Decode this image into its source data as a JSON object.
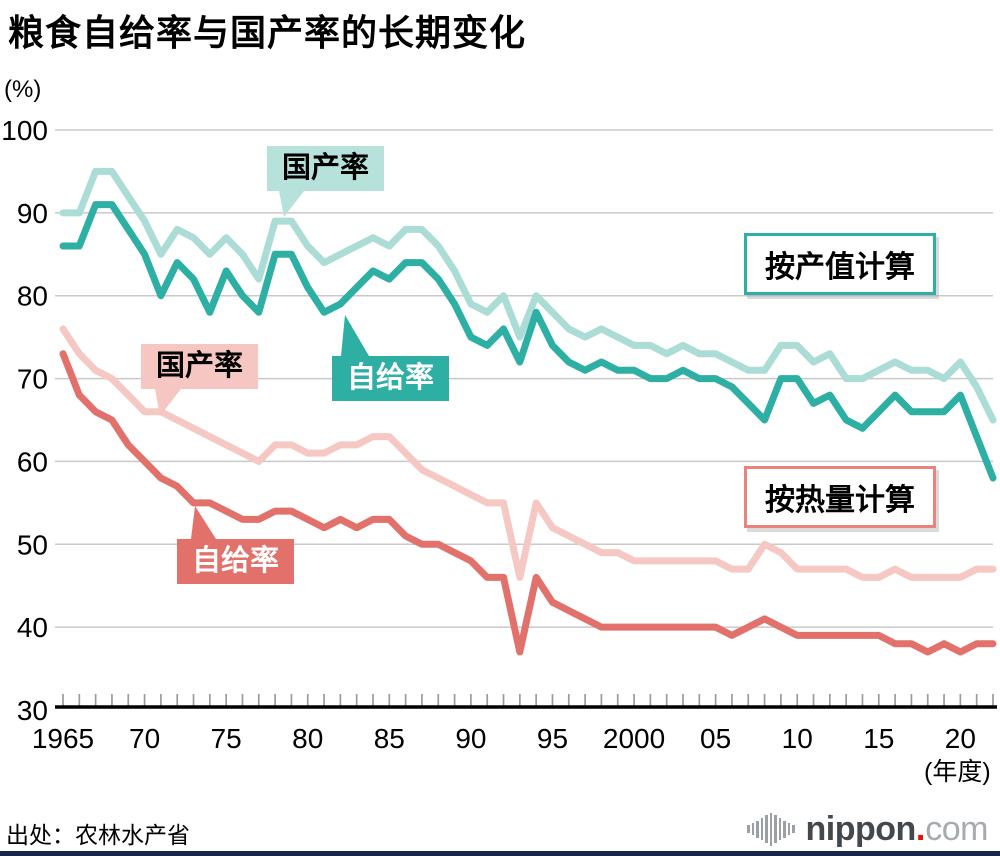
{
  "title": "粮食自给率与国产率的长期变化",
  "y_axis_unit": "(%)",
  "x_axis_unit": "(年度)",
  "callouts": {
    "teal_kokusan": "国产率",
    "teal_jikyu": "自给率",
    "pink_kokusan": "国产率",
    "pink_jikyu": "自给率",
    "prod_value_note": "按产值计算",
    "calorie_note": "按热量计算"
  },
  "footer": {
    "source": "出处：农林水产省",
    "brand": {
      "name": "nippon",
      "dot": ".",
      "tld": "com"
    }
  },
  "colors": {
    "teal_light": "#abdcd5",
    "teal_dark": "#2eafa4",
    "pink_light": "#f6c8c4",
    "red": "#e2716b",
    "callout_teal_light_bg": "#b7e2db",
    "callout_pink_bg": "#f5c6c2",
    "note_teal_border": "#2eafa4",
    "note_red_border": "#e8837d",
    "grid": "#c9c9c9",
    "tick": "#9b9b9b",
    "axis": "#000000",
    "text": "#000000",
    "logo_gray": "#43484d",
    "logo_light": "#a6abaf",
    "logo_red": "#e3120b",
    "logo_bars": "#9aa0a6",
    "bottom_bar": "#16274a"
  },
  "chart_data": {
    "type": "line",
    "title": "粮食自给率与国产率的长期变化",
    "ylabel": "(%)",
    "xlabel": "(年度)",
    "ylim": [
      30,
      100
    ],
    "yticks": [
      30,
      40,
      50,
      60,
      70,
      80,
      90,
      100
    ],
    "xticks": [
      1965,
      1970,
      1975,
      1980,
      1985,
      1990,
      1995,
      2000,
      2005,
      2010,
      2015,
      2020
    ],
    "xtick_labels": [
      "1965",
      "70",
      "75",
      "80",
      "85",
      "90",
      "95",
      "2000",
      "05",
      "10",
      "15",
      "20"
    ],
    "grid": "horizontal",
    "legend_position": "inline-callouts",
    "years": [
      1965,
      1966,
      1967,
      1968,
      1969,
      1970,
      1971,
      1972,
      1973,
      1974,
      1975,
      1976,
      1977,
      1978,
      1979,
      1980,
      1981,
      1982,
      1983,
      1984,
      1985,
      1986,
      1987,
      1988,
      1989,
      1990,
      1991,
      1992,
      1993,
      1994,
      1995,
      1996,
      1997,
      1998,
      1999,
      2000,
      2001,
      2002,
      2003,
      2004,
      2005,
      2006,
      2007,
      2008,
      2009,
      2010,
      2011,
      2012,
      2013,
      2014,
      2015,
      2016,
      2017,
      2018,
      2019,
      2020,
      2021,
      2022
    ],
    "series": [
      {
        "id": "kokusan-prodvalue",
        "name": "国产率（按产值计算）",
        "color": "#abdcd5",
        "width": 7,
        "values": [
          90,
          90,
          95,
          95,
          92,
          89,
          85,
          88,
          87,
          85,
          87,
          85,
          82,
          89,
          89,
          86,
          84,
          85,
          86,
          87,
          86,
          88,
          88,
          86,
          83,
          79,
          78,
          80,
          75,
          80,
          78,
          76,
          75,
          76,
          75,
          74,
          74,
          73,
          74,
          73,
          73,
          72,
          71,
          71,
          74,
          74,
          72,
          73,
          70,
          70,
          71,
          72,
          71,
          71,
          70,
          72,
          69,
          65
        ]
      },
      {
        "id": "jikyu-prodvalue",
        "name": "自给率（按产值计算）",
        "color": "#2eafa4",
        "width": 7,
        "values": [
          86,
          86,
          91,
          91,
          88,
          85,
          80,
          84,
          82,
          78,
          83,
          80,
          78,
          85,
          85,
          81,
          78,
          79,
          81,
          83,
          82,
          84,
          84,
          82,
          79,
          75,
          74,
          76,
          72,
          78,
          74,
          72,
          71,
          72,
          71,
          71,
          70,
          70,
          71,
          70,
          70,
          69,
          67,
          65,
          70,
          70,
          67,
          68,
          65,
          64,
          66,
          68,
          66,
          66,
          66,
          68,
          63,
          58
        ]
      },
      {
        "id": "kokusan-calorie",
        "name": "国产率（按热量计算）",
        "color": "#f6c8c4",
        "width": 7,
        "values": [
          76,
          73,
          71,
          70,
          68,
          66,
          66,
          65,
          64,
          63,
          62,
          61,
          60,
          62,
          62,
          61,
          61,
          62,
          62,
          63,
          63,
          61,
          59,
          58,
          57,
          56,
          55,
          55,
          46,
          55,
          52,
          51,
          50,
          49,
          49,
          48,
          48,
          48,
          48,
          48,
          48,
          47,
          47,
          50,
          49,
          47,
          47,
          47,
          47,
          46,
          46,
          47,
          46,
          46,
          46,
          46,
          47,
          47
        ]
      },
      {
        "id": "jikyu-calorie",
        "name": "自给率（按热量计算）",
        "color": "#e2716b",
        "width": 7,
        "values": [
          73,
          68,
          66,
          65,
          62,
          60,
          58,
          57,
          55,
          55,
          54,
          53,
          53,
          54,
          54,
          53,
          52,
          53,
          52,
          53,
          53,
          51,
          50,
          50,
          49,
          48,
          46,
          46,
          37,
          46,
          43,
          42,
          41,
          40,
          40,
          40,
          40,
          40,
          40,
          40,
          40,
          39,
          40,
          41,
          40,
          39,
          39,
          39,
          39,
          39,
          39,
          38,
          38,
          37,
          38,
          37,
          38,
          38
        ]
      }
    ]
  }
}
